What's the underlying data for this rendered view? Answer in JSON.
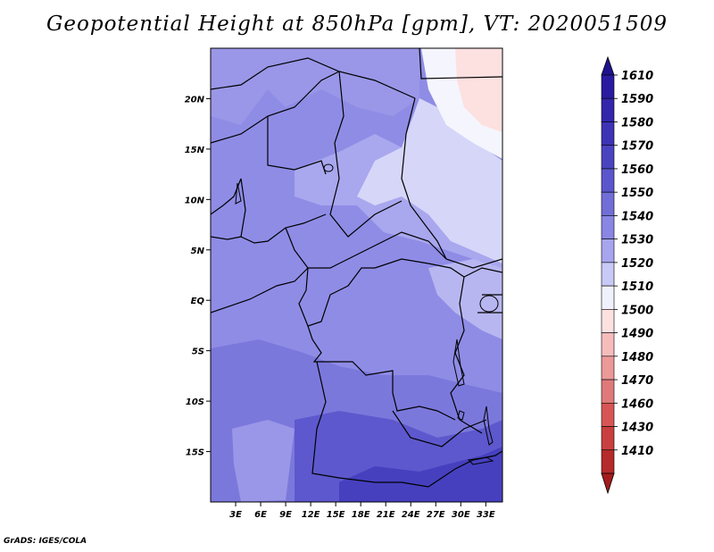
{
  "title": "Geopotential Height at 850hPa [gpm], VT: 2020051509",
  "credit": "GrADS: IGES/COLA",
  "map": {
    "lon_range": [
      0,
      35
    ],
    "lat_range": [
      -20,
      25
    ],
    "x_ticks": [
      {
        "lon": 3,
        "label": "3E"
      },
      {
        "lon": 6,
        "label": "6E"
      },
      {
        "lon": 9,
        "label": "9E"
      },
      {
        "lon": 12,
        "label": "12E"
      },
      {
        "lon": 15,
        "label": "15E"
      },
      {
        "lon": 18,
        "label": "18E"
      },
      {
        "lon": 21,
        "label": "21E"
      },
      {
        "lon": 24,
        "label": "24E"
      },
      {
        "lon": 27,
        "label": "27E"
      },
      {
        "lon": 30,
        "label": "30E"
      },
      {
        "lon": 33,
        "label": "33E"
      }
    ],
    "y_ticks": [
      {
        "lat": 20,
        "label": "20N"
      },
      {
        "lat": 15,
        "label": "15N"
      },
      {
        "lat": 10,
        "label": "10N"
      },
      {
        "lat": 5,
        "label": "5N"
      },
      {
        "lat": 0,
        "label": "EQ"
      },
      {
        "lat": -5,
        "label": "5S"
      },
      {
        "lat": -10,
        "label": "10S"
      },
      {
        "lat": -15,
        "label": "15S"
      }
    ]
  },
  "legend": {
    "levels": [
      {
        "label": "1610",
        "color": "#2a1aa0"
      },
      {
        "label": "1590",
        "color": "#3326aa"
      },
      {
        "label": "1580",
        "color": "#3d33b5"
      },
      {
        "label": "1570",
        "color": "#4a43c0"
      },
      {
        "label": "1560",
        "color": "#5b56cc"
      },
      {
        "label": "1550",
        "color": "#716ed8"
      },
      {
        "label": "1540",
        "color": "#8986e4"
      },
      {
        "label": "1530",
        "color": "#a7a5ee"
      },
      {
        "label": "1520",
        "color": "#c9c9f7"
      },
      {
        "label": "1510",
        "color": "#f1f1fd"
      },
      {
        "label": "1500",
        "color": "#fde1e1"
      },
      {
        "label": "1490",
        "color": "#f6bcbc"
      },
      {
        "label": "1480",
        "color": "#ec9999"
      },
      {
        "label": "1470",
        "color": "#e07a7a"
      },
      {
        "label": "1460",
        "color": "#d85555"
      },
      {
        "label": "1430",
        "color": "#c93f3f"
      },
      {
        "label": "1410",
        "color": "#b52a2a"
      }
    ],
    "top_arrow_color": "#1f128f",
    "bottom_arrow_color": "#a51c1c"
  },
  "colors": {
    "base": "#8f8ce6",
    "pale": "#d6d6f8",
    "white": "#f5f5fe",
    "pink": "#fde0e0",
    "mid": "#7b78dc",
    "dark": "#5d58cd",
    "darker": "#4640bf"
  }
}
